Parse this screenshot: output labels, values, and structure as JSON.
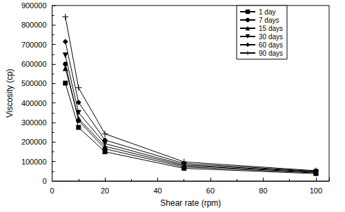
{
  "chart_data": {
    "type": "line",
    "x_label": "Shear rate (rpm)",
    "y_label": "Viscosity (cp)",
    "xlim": [
      0,
      105
    ],
    "xticks": [
      0,
      20,
      40,
      60,
      80,
      100
    ],
    "ylim": [
      0,
      900000
    ],
    "yticks": [
      0,
      100000,
      200000,
      300000,
      400000,
      500000,
      600000,
      700000,
      800000,
      900000
    ],
    "grid": false,
    "legend": "upper right",
    "x": [
      5,
      10,
      20,
      50,
      100
    ],
    "series": [
      {
        "name": "1 day",
        "color": "#000000",
        "marker": "square",
        "values": [
          502000,
          275000,
          150000,
          65000,
          38000
        ]
      },
      {
        "name": "7 days",
        "color": "#000000",
        "marker": "circle",
        "values": [
          600000,
          310000,
          165000,
          72000,
          42000
        ]
      },
      {
        "name": "15 days",
        "color": "#000000",
        "marker": "triangle",
        "values": [
          578000,
          320000,
          178000,
          78000,
          45000
        ]
      },
      {
        "name": "30 days",
        "color": "#000000",
        "marker": "triangle_down",
        "values": [
          645000,
          350000,
          192000,
          83000,
          48000
        ]
      },
      {
        "name": "60 days",
        "color": "#000000",
        "marker": "diamond",
        "values": [
          715000,
          403000,
          210000,
          90000,
          50000
        ]
      },
      {
        "name": "90 days",
        "color": "#000000",
        "marker": "plus",
        "values": [
          842000,
          478000,
          242000,
          98000,
          53000
        ]
      }
    ]
  }
}
